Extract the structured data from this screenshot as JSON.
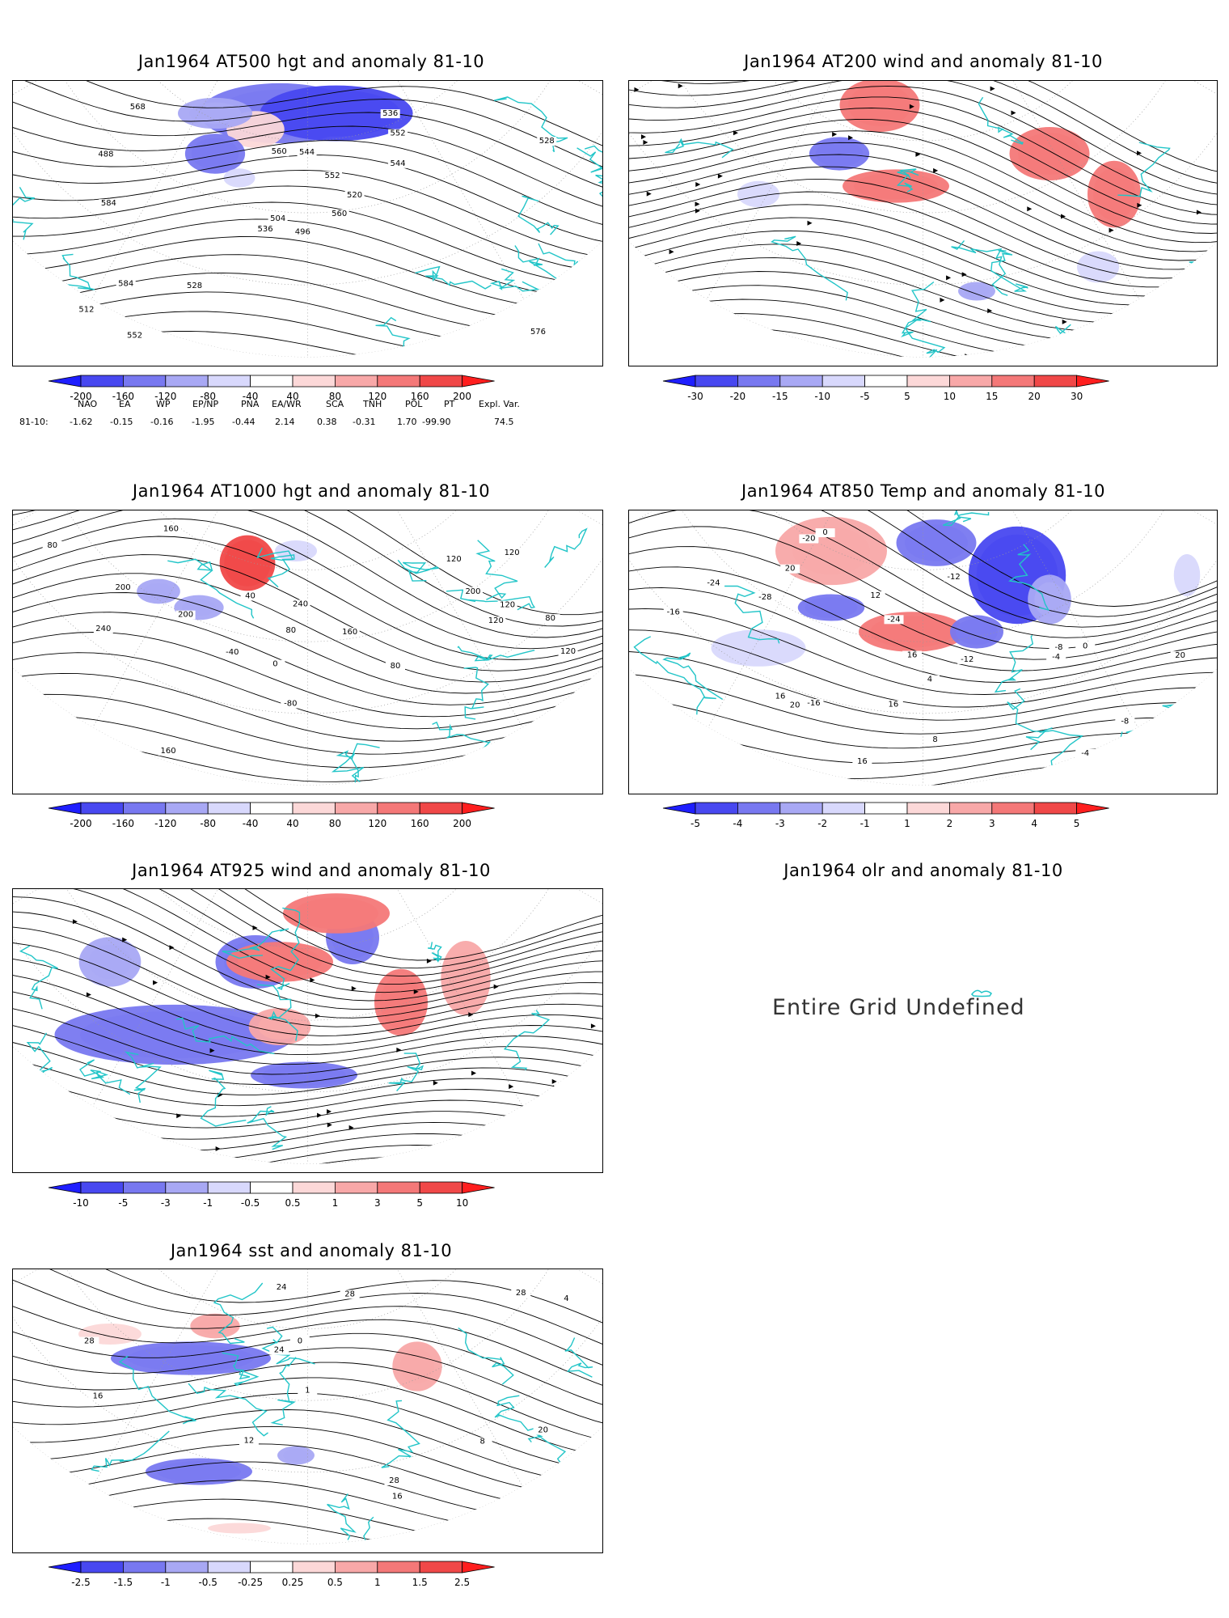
{
  "panels": [
    {
      "id": "p1",
      "title": "Jan1964 AT500 hgt and anomaly 81-10",
      "contour_labels": [
        "496",
        "488",
        "504",
        "512",
        "520",
        "528",
        "536",
        "544",
        "552",
        "560",
        "568",
        "576",
        "584",
        "528",
        "536",
        "544",
        "552",
        "560",
        "552",
        "584"
      ],
      "colorbar": [
        "-200",
        "-160",
        "-120",
        "-80",
        "-40",
        "40",
        "80",
        "120",
        "160",
        "200"
      ]
    },
    {
      "id": "p2",
      "title": "Jan1964 AT200 wind and anomaly 81-10",
      "contour_labels": [],
      "colorbar": [
        "-30",
        "-20",
        "-15",
        "-10",
        "-5",
        "5",
        "10",
        "15",
        "20",
        "30"
      ]
    },
    {
      "id": "p3",
      "title": "Jan1964 AT1000 hgt and anomaly 81-10",
      "contour_labels": [
        "80",
        "0",
        "240",
        "120",
        "40",
        "-80",
        "160",
        "120",
        "200",
        "-40",
        "200",
        "240",
        "160",
        "120",
        "200",
        "160",
        "120",
        "80",
        "80",
        "80",
        "120"
      ],
      "colorbar": [
        "-200",
        "-160",
        "-120",
        "-80",
        "-40",
        "40",
        "80",
        "120",
        "160",
        "200"
      ]
    },
    {
      "id": "p4",
      "title": "Jan1964 AT850 Temp and anomaly 81-10",
      "contour_labels": [
        "-28",
        "-24",
        "-24",
        "-20",
        "-16",
        "-12",
        "-16",
        "-12",
        "-8",
        "-4",
        "0",
        "-8",
        "-4",
        "0",
        "4",
        "8",
        "12",
        "16",
        "16",
        "16",
        "20",
        "20",
        "20",
        "16"
      ],
      "colorbar": [
        "-5",
        "-4",
        "-3",
        "-2",
        "-1",
        "1",
        "2",
        "3",
        "4",
        "5"
      ]
    },
    {
      "id": "p5",
      "title": "Jan1964 AT925 wind and anomaly 81-10",
      "contour_labels": [],
      "colorbar": [
        "-10",
        "-5",
        "-3",
        "-1",
        "-0.5",
        "0.5",
        "1",
        "3",
        "5",
        "10"
      ]
    },
    {
      "id": "p6",
      "title": "Jan1964 olr and anomaly 81-10",
      "message": "Entire Grid Undefined"
    },
    {
      "id": "p7",
      "title": "Jan1964 sst and anomaly 81-10",
      "contour_labels": [
        "28",
        "28",
        "24",
        "0",
        "4",
        "8",
        "12",
        "16",
        "16",
        "20",
        "24",
        "28",
        "1",
        "28"
      ],
      "colorbar": [
        "-2.5",
        "-1.5",
        "-1",
        "-0.5",
        "-0.25",
        "0.25",
        "0.5",
        "1",
        "1.5",
        "2.5"
      ]
    }
  ],
  "teleconnections": {
    "headers": [
      "NAO",
      "EA",
      "WP",
      "EP/NP",
      "PNA",
      "EA/WR",
      "SCA",
      "TNH",
      "POL",
      "PT",
      "Expl. Var."
    ],
    "row_label": "81-10:",
    "values": [
      "-1.62",
      "-0.15",
      "-0.16",
      "-1.95",
      "-0.44",
      "2.14",
      "0.38",
      "-0.31",
      "1.70",
      "-99.90",
      "74.5"
    ]
  },
  "colors": {
    "coast": "#22c5c8",
    "neg": [
      "#1e1eff",
      "#4848f0",
      "#7878f0",
      "#a8a8f4",
      "#d8d8fc"
    ],
    "pos": [
      "#fcd8d8",
      "#f8a8a8",
      "#f47878",
      "#f04848",
      "#ff1e1e"
    ]
  }
}
